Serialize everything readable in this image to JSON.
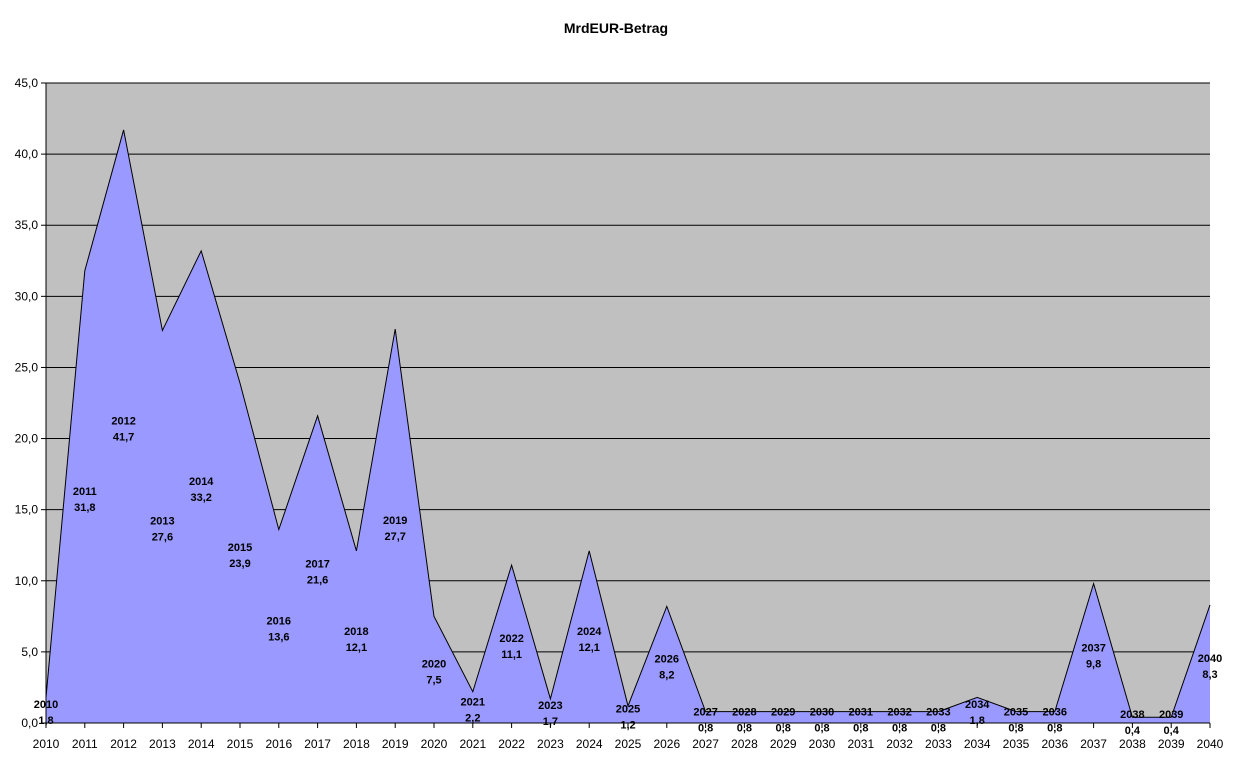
{
  "chart_data": {
    "type": "area",
    "title": "MrdEUR-Betrag",
    "xlabel": "",
    "ylabel": "",
    "ylim": [
      0,
      45
    ],
    "y_ticks": [
      "0,0",
      "5,0",
      "10,0",
      "15,0",
      "20,0",
      "25,0",
      "30,0",
      "35,0",
      "40,0",
      "45,0"
    ],
    "grid": true,
    "legend": "none",
    "categories": [
      "2010",
      "2011",
      "2012",
      "2013",
      "2014",
      "2015",
      "2016",
      "2017",
      "2018",
      "2019",
      "2020",
      "2021",
      "2022",
      "2023",
      "2024",
      "2025",
      "2026",
      "2027",
      "2028",
      "2029",
      "2030",
      "2031",
      "2032",
      "2033",
      "2034",
      "2035",
      "2036",
      "2037",
      "2038",
      "2039",
      "2040"
    ],
    "values": [
      1.8,
      31.8,
      41.7,
      27.6,
      33.2,
      23.9,
      13.6,
      21.6,
      12.1,
      27.7,
      7.5,
      2.2,
      11.1,
      1.7,
      12.1,
      1.2,
      8.2,
      0.8,
      0.8,
      0.8,
      0.8,
      0.8,
      0.8,
      0.8,
      1.8,
      0.8,
      0.8,
      9.8,
      0.4,
      0.4,
      8.3
    ],
    "value_labels": [
      "1,8",
      "31,8",
      "41,7",
      "27,6",
      "33,2",
      "23,9",
      "13,6",
      "21,6",
      "12,1",
      "27,7",
      "7,5",
      "2,2",
      "11,1",
      "1,7",
      "12,1",
      "1,2",
      "8,2",
      "0,8",
      "0,8",
      "0,8",
      "0,8",
      "0,8",
      "0,8",
      "0,8",
      "1,8",
      "0,8",
      "0,8",
      "9,8",
      "0,4",
      "0,4",
      "8,3"
    ],
    "colors": {
      "area_fill": "#9999ff",
      "plot_bg": "#c0c0c0",
      "gridline": "#000000",
      "outline": "#000000"
    }
  }
}
